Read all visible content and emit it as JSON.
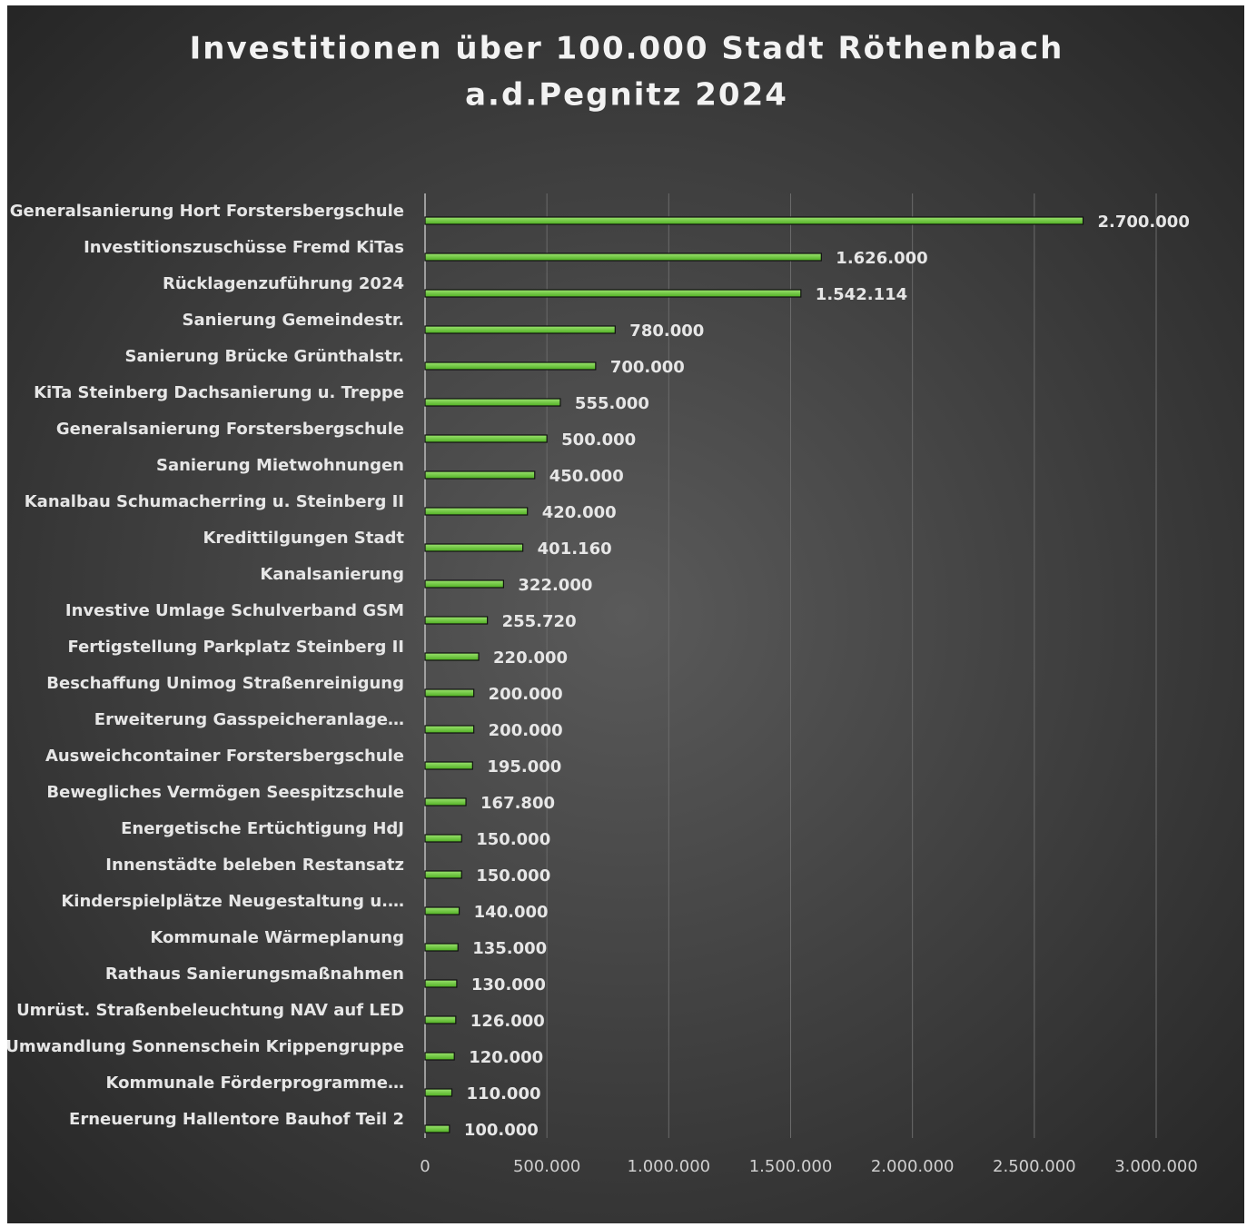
{
  "chart_data": {
    "type": "bar",
    "orientation": "horizontal",
    "title": [
      "Investitionen über 100.000  Stadt Röthenbach",
      "a.d.Pegnitz 2024"
    ],
    "categories": [
      "Generalsanierung Hort Forstersbergschule",
      "Investitionszuschüsse Fremd KiTas",
      "Rücklagenzuführung 2024",
      "Sanierung Gemeindestr.",
      "Sanierung Brücke Grünthalstr.",
      "KiTa Steinberg Dachsanierung u. Treppe",
      "Generalsanierung Forstersbergschule",
      "Sanierung Mietwohnungen",
      "Kanalbau Schumacherring u. Steinberg II",
      "Kredittilgungen Stadt",
      "Kanalsanierung",
      "Investive Umlage Schulverband GSM",
      "Fertigstellung Parkplatz Steinberg II",
      "Beschaffung Unimog Straßenreinigung",
      "Erweiterung Gasspeicheranlage…",
      "Ausweichcontainer Forstersbergschule",
      "Bewegliches Vermögen Seespitzschule",
      "Energetische Ertüchtigung HdJ",
      "Innenstädte beleben Restansatz",
      "Kinderspielplätze Neugestaltung u.…",
      "Kommunale Wärmeplanung",
      "Rathaus Sanierungsmaßnahmen",
      "Umrüst. Straßenbeleuchtung NAV auf LED",
      "Umwandlung Sonnenschein Krippengruppe",
      "Kommunale Förderprogramme…",
      "Erneuerung Hallentore Bauhof Teil 2"
    ],
    "values": [
      2700000,
      1626000,
      1542114,
      780000,
      700000,
      555000,
      500000,
      450000,
      420000,
      401160,
      322000,
      255720,
      220000,
      200000,
      200000,
      195000,
      167800,
      150000,
      150000,
      140000,
      135000,
      130000,
      126000,
      120000,
      110000,
      100000
    ],
    "value_labels": [
      "2.700.000",
      "1.626.000",
      "1.542.114",
      "780.000",
      "700.000",
      "555.000",
      "500.000",
      "450.000",
      "420.000",
      "401.160",
      "322.000",
      "255.720",
      "220.000",
      "200.000",
      "200.000",
      "195.000",
      "167.800",
      "150.000",
      "150.000",
      "140.000",
      "135.000",
      "130.000",
      "126.000",
      "120.000",
      "110.000",
      "100.000"
    ],
    "color": "#6fcf3f",
    "xlim": [
      0,
      3000000
    ],
    "xticks": [
      0,
      {
        "value": 500000,
        "label": "500.000"
      },
      {
        "value": 1000000,
        "label": "1.000.000"
      },
      {
        "value": 1500000,
        "label": "1.500.000"
      },
      {
        "value": 2000000,
        "label": "2.000.000"
      },
      {
        "value": 2500000,
        "label": "2.500.000"
      },
      {
        "value": 3000000,
        "label": "3.000.000"
      }
    ],
    "grid": true
  }
}
